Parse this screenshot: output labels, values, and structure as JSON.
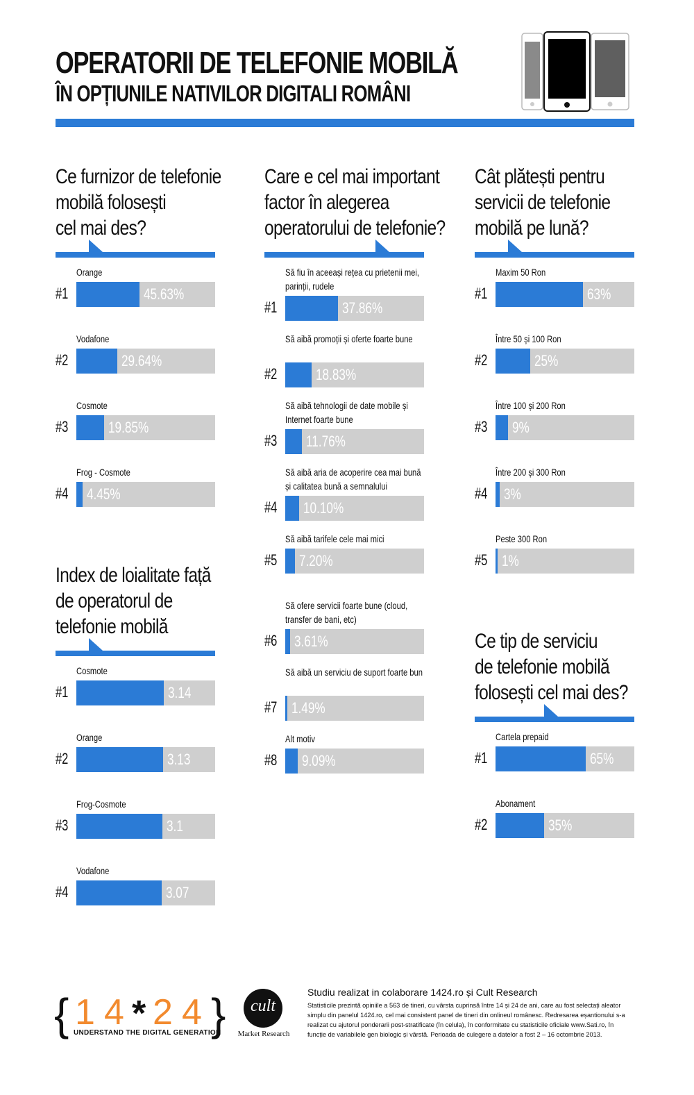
{
  "header": {
    "title_line1": "OPERATORII DE TELEFONIE MOBILĂ",
    "title_line2": "ÎN OPȚIUNILE NATIVILOR DIGITALI ROMÂNI",
    "accent_color": "#2b7bd6",
    "track_color": "#cfcfcf",
    "icons": [
      "phone-outline-icon",
      "phone-black-icon",
      "phone-gray-icon"
    ]
  },
  "chart_data": [
    {
      "type": "bar",
      "title": "Ce furnizor de telefonie mobilă folosești cel mai des?",
      "unit": "%",
      "categories": [
        "Orange",
        "Vodafone",
        "Cosmote",
        "Frog - Cosmote"
      ],
      "ranks": [
        "#1",
        "#2",
        "#3",
        "#4"
      ],
      "values": [
        45.63,
        29.64,
        19.85,
        4.45
      ],
      "value_labels": [
        "45.63%",
        "29.64%",
        "19.85%",
        "4.45%"
      ],
      "ylim": [
        0,
        100
      ]
    },
    {
      "type": "bar",
      "title": "Index de loialitate față de operatorul de telefonie mobilă",
      "categories": [
        "Cosmote",
        "Orange",
        "Frog-Cosmote",
        "Vodafone"
      ],
      "ranks": [
        "#1",
        "#2",
        "#3",
        "#4"
      ],
      "values": [
        3.14,
        3.13,
        3.1,
        3.07
      ],
      "value_labels": [
        "3.14",
        "3.13",
        "3.1",
        "3.07"
      ],
      "ylim": [
        0,
        5
      ]
    },
    {
      "type": "bar",
      "title": "Care e cel mai important factor în alegerea operatorului de telefonie?",
      "unit": "%",
      "categories": [
        "Să fiu în aceeași rețea cu prietenii mei, parinții, rudele",
        "Să aibă promoții și oferte foarte bune",
        "Să aibă tehnologii de date mobile și Internet foarte bune",
        "Să aibă aria de acoperire cea mai bună și calitatea bună a semnalului",
        "Să aibă tarifele cele mai mici",
        "Să ofere servicii foarte bune (cloud, transfer de bani, etc)",
        "Să aibă un serviciu de suport foarte bun",
        "Alt motiv"
      ],
      "ranks": [
        "#1",
        "#2",
        "#3",
        "#4",
        "#5",
        "#6",
        "#7",
        "#8"
      ],
      "values": [
        37.86,
        18.83,
        11.76,
        10.1,
        7.2,
        3.61,
        1.49,
        9.09
      ],
      "value_labels": [
        "37.86%",
        "18.83%",
        "11.76%",
        "10.10%",
        "7.20%",
        "3.61%",
        "1.49%",
        "9.09%"
      ],
      "ylim": [
        0,
        100
      ]
    },
    {
      "type": "bar",
      "title": "Cât plătești pentru servicii de telefonie mobilă pe lună?",
      "unit": "%",
      "categories": [
        "Maxim 50 Ron",
        "Între 50 și 100 Ron",
        "Între 100 și 200 Ron",
        "Între 200 și 300 Ron",
        "Peste 300 Ron"
      ],
      "ranks": [
        "#1",
        "#2",
        "#3",
        "#4",
        "#5"
      ],
      "values": [
        63,
        25,
        9,
        3,
        1
      ],
      "value_labels": [
        "63%",
        "25%",
        "9%",
        "3%",
        "1%"
      ],
      "ylim": [
        0,
        100
      ]
    },
    {
      "type": "bar",
      "title": "Ce tip de serviciu de telefonie mobilă folosești cel mai des?",
      "unit": "%",
      "categories": [
        "Cartela prepaid",
        "Abonament"
      ],
      "ranks": [
        "#1",
        "#2"
      ],
      "values": [
        65,
        35
      ],
      "value_labels": [
        "65%",
        "35%"
      ],
      "ylim": [
        0,
        100
      ]
    }
  ],
  "sections": {
    "q1": {
      "title_lines": [
        "Ce furnizor de telefonie",
        "mobilă folosești",
        "cel mai des?"
      ]
    },
    "q2": {
      "title_lines": [
        "Index de loialitate față",
        "de operatorul de",
        "telefonie mobilă"
      ]
    },
    "q3": {
      "title_lines": [
        "Care e cel mai important",
        "factor în alegerea",
        "operatorului de telefonie?"
      ]
    },
    "q4": {
      "title_lines": [
        "Cât plătești pentru",
        "servicii de telefonie",
        "mobilă pe lună?"
      ]
    },
    "q5": {
      "title_lines": [
        "Ce tip de serviciu",
        "de telefonie mobilă",
        "folosești cel mai des?"
      ]
    }
  },
  "footer": {
    "logo_left_brace": "{",
    "logo_right_brace": "}",
    "logo_digits": [
      "1",
      "4",
      "2",
      "4"
    ],
    "logo_star": "*",
    "logo_tagline": "UNDERSTAND THE DIGITAL GENERATION",
    "cult_word": "cult",
    "cult_sub": "Market Research",
    "study_title": "Studiu realizat in colaborare 1424.ro și Cult Research",
    "study_body": "Statisticile prezintă opiniile a 563 de tineri, cu vârsta cuprinsă între 14 și 24 de ani, care au fost selectați aleator simplu din panelul 1424.ro, cel mai consistent panel de tineri din onlineul românesc.  Redresarea eșantionului s-a realizat cu ajutorul ponderarii post-stratificate (în celula), în conformitate cu statisticile oficiale www.Sati.ro, în funcție de  variabilele gen biologic și vârstă. Perioada de culegere a datelor a fost 2 – 16 octombrie 2013."
  }
}
